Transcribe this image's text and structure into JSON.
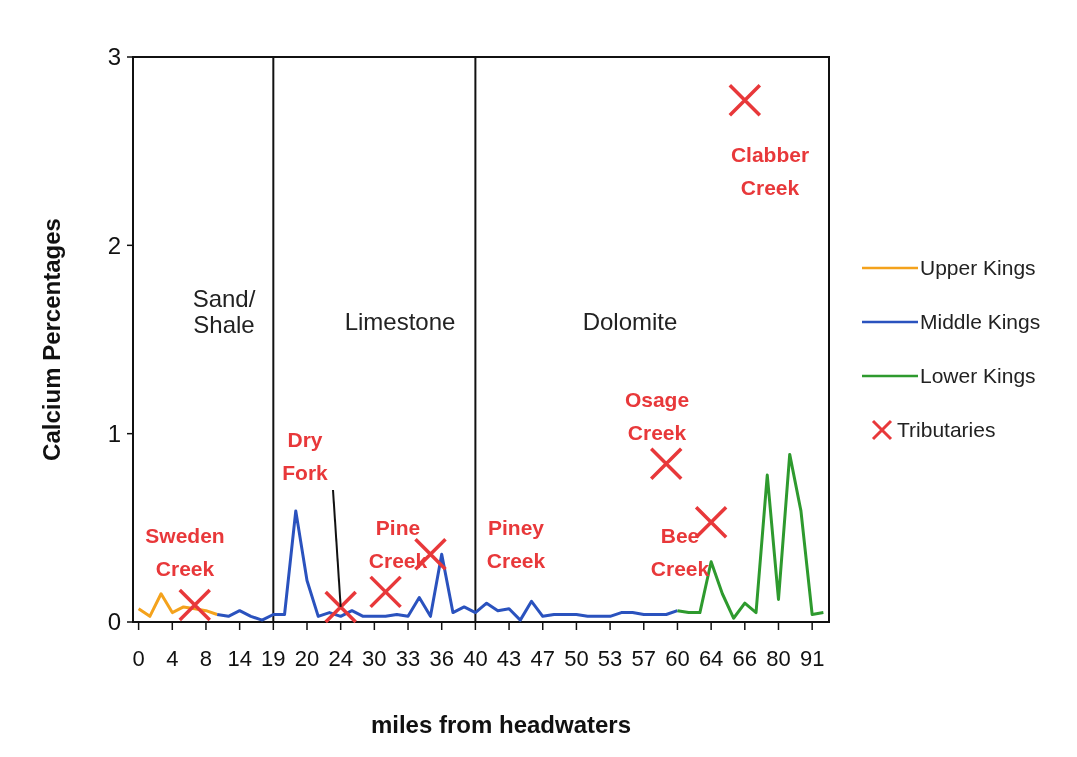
{
  "chart_data": {
    "type": "line",
    "xlabel": "miles from headwaters",
    "ylabel": "Calcium Percentages",
    "categories": [
      "0",
      null,
      null,
      "4",
      null,
      null,
      "8",
      null,
      null,
      "14",
      null,
      null,
      "19",
      null,
      null,
      "20",
      null,
      null,
      "24",
      null,
      null,
      "30",
      null,
      null,
      "33",
      null,
      null,
      "36",
      null,
      null,
      "40",
      null,
      null,
      "43",
      null,
      null,
      "47",
      null,
      null,
      "50",
      null,
      null,
      "53",
      null,
      null,
      "57",
      null,
      null,
      "60",
      null,
      null,
      "64",
      null,
      null,
      "66",
      null,
      null,
      "80",
      null,
      null,
      "91",
      null
    ],
    "series": [
      {
        "name": "Upper Kings",
        "color": "#f4a21c",
        "values": [
          0.07,
          0.03,
          0.15,
          0.05,
          0.08,
          0.07,
          0.06,
          0.04,
          null,
          null,
          null,
          null,
          null,
          null,
          null,
          null,
          null,
          null,
          null,
          null,
          null,
          null,
          null,
          null,
          null,
          null,
          null,
          null,
          null,
          null,
          null,
          null,
          null,
          null,
          null,
          null,
          null,
          null,
          null,
          null,
          null,
          null,
          null,
          null,
          null,
          null,
          null,
          null,
          null,
          null,
          null,
          null,
          null,
          null,
          null,
          null,
          null,
          null,
          null,
          null,
          null,
          null
        ]
      },
      {
        "name": "Middle Kings",
        "color": "#2a52be",
        "values": [
          null,
          null,
          null,
          null,
          null,
          null,
          null,
          0.04,
          0.03,
          0.06,
          0.03,
          0.01,
          0.04,
          0.04,
          0.59,
          0.22,
          0.03,
          0.05,
          0.03,
          0.06,
          0.03,
          0.03,
          0.03,
          0.04,
          0.03,
          0.13,
          0.03,
          0.36,
          0.05,
          0.08,
          0.05,
          0.1,
          0.06,
          0.07,
          0.01,
          0.11,
          0.03,
          0.04,
          0.04,
          0.04,
          0.03,
          0.03,
          0.03,
          0.05,
          0.05,
          0.04,
          0.04,
          0.04,
          0.06,
          null,
          null,
          null,
          null,
          null,
          null,
          null,
          null,
          null,
          null,
          null,
          null,
          null
        ]
      },
      {
        "name": "Lower Kings",
        "color": "#2e9a2e",
        "values": [
          null,
          null,
          null,
          null,
          null,
          null,
          null,
          null,
          null,
          null,
          null,
          null,
          null,
          null,
          null,
          null,
          null,
          null,
          null,
          null,
          null,
          null,
          null,
          null,
          null,
          null,
          null,
          null,
          null,
          null,
          null,
          null,
          null,
          null,
          null,
          null,
          null,
          null,
          null,
          null,
          null,
          null,
          null,
          null,
          null,
          null,
          null,
          null,
          0.06,
          0.05,
          0.05,
          0.32,
          0.15,
          0.02,
          0.1,
          0.05,
          0.78,
          0.12,
          0.89,
          0.59,
          0.04,
          0.05
        ]
      },
      {
        "name": "Tributaries",
        "type": "scatter",
        "marker": "cross",
        "color": "#e8383a",
        "values": [
          null,
          null,
          null,
          null,
          null,
          0.09,
          null,
          null,
          null,
          null,
          null,
          null,
          null,
          null,
          null,
          null,
          null,
          null,
          0.08,
          null,
          null,
          null,
          0.16,
          null,
          null,
          null,
          0.36,
          null,
          null,
          null,
          null,
          null,
          null,
          null,
          null,
          null,
          null,
          null,
          null,
          null,
          null,
          null,
          null,
          null,
          null,
          null,
          null,
          0.84,
          null,
          null,
          null,
          0.53,
          null,
          null,
          2.77,
          null,
          null,
          null,
          null,
          null,
          null,
          null
        ]
      }
    ],
    "ylim": [
      0,
      3
    ],
    "yticks": [
      0,
      1,
      2,
      3
    ],
    "grid": false,
    "legend": "right",
    "marker": "none",
    "ref_lines": [
      {
        "axis": "x",
        "value": "19"
      },
      {
        "axis": "x",
        "value": "40"
      }
    ],
    "annotations": [
      "Sand/ Shale",
      "Limestone",
      "Dolomite",
      "Sweden Creek",
      {
        "text": "Dry Fork",
        "x": "24",
        "y": 0.08
      },
      "Pine Creek",
      "Piney Creek",
      "Osage Creek",
      "Bee Creek",
      "Clabber Creek"
    ]
  }
}
